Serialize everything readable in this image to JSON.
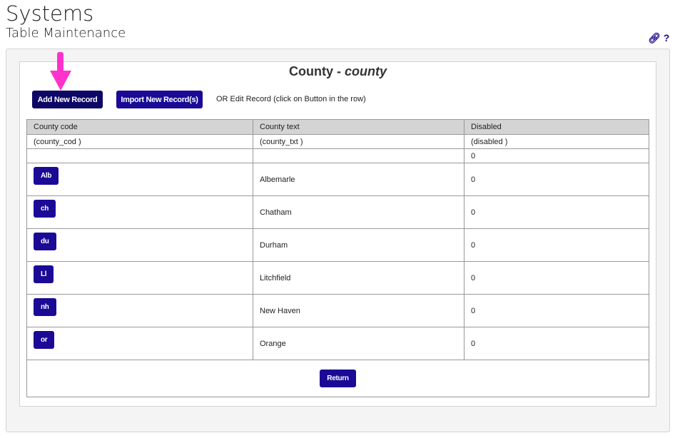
{
  "header": {
    "title": "Systems",
    "subtitle": "Table Maintenance",
    "link_icon": "link-icon",
    "help_label": "?"
  },
  "panel": {
    "title": "County - ",
    "title_italic": "county",
    "add_label": "Add New Record",
    "import_label": "Import New Record(s)",
    "hint": "OR Edit Record (click on Button in the row)",
    "return_label": "Return"
  },
  "table": {
    "columns": [
      "County code",
      "County text",
      "Disabled"
    ],
    "fields": [
      "(county_cod )",
      "(county_txt )",
      "(disabled )"
    ],
    "blank_row": [
      "",
      "",
      "0"
    ],
    "rows": [
      {
        "code": "Alb",
        "text": "Albemarle",
        "disabled": "0"
      },
      {
        "code": "ch",
        "text": "Chatham",
        "disabled": "0"
      },
      {
        "code": "du",
        "text": "Durham",
        "disabled": "0"
      },
      {
        "code": "Ll",
        "text": "Litchfield",
        "disabled": "0"
      },
      {
        "code": "nh",
        "text": "New Haven",
        "disabled": "0"
      },
      {
        "code": "or",
        "text": "Orange",
        "disabled": "0"
      }
    ]
  },
  "colors": {
    "button": "#1a0a96",
    "annotation_arrow": "#ff33cc"
  }
}
